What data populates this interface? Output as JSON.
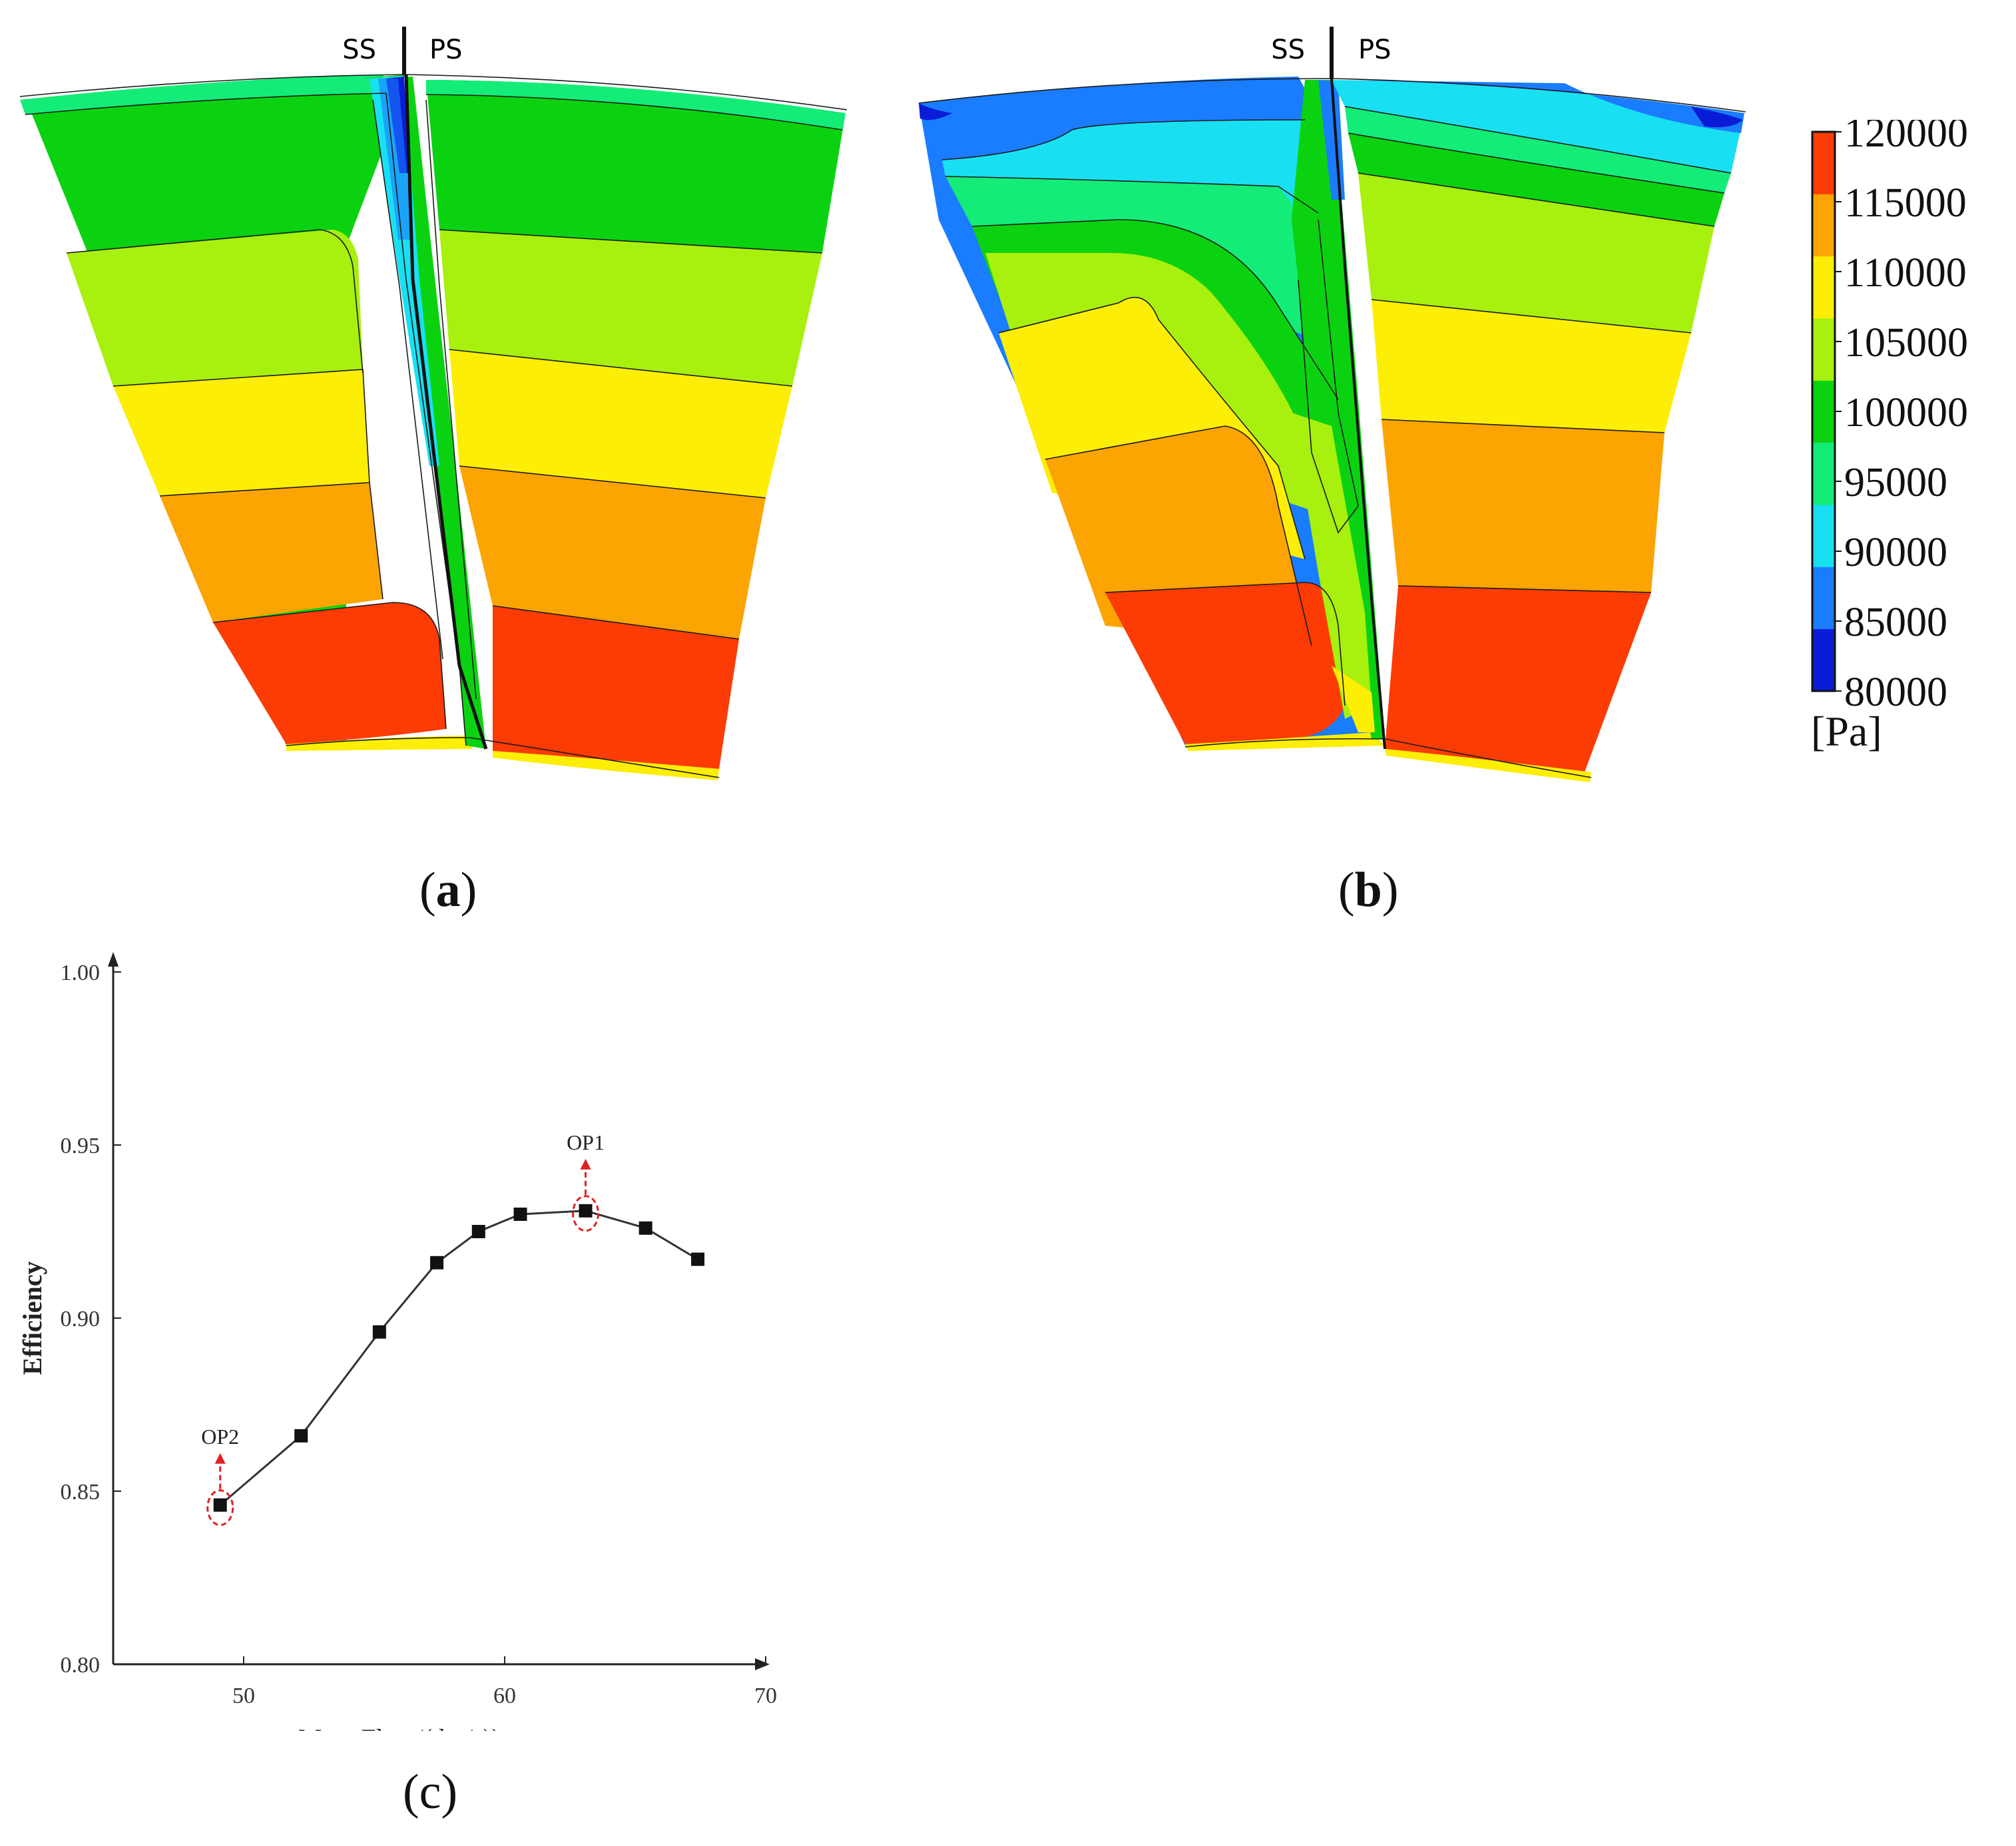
{
  "figure": {
    "panel_a_label": {
      "open": "(",
      "letter": "a",
      "close": ")"
    },
    "panel_b_label": {
      "open": "(",
      "letter": "b",
      "close": ")"
    },
    "panel_c_label": "(c)"
  },
  "contour_a": {
    "ss_label": "SS",
    "ps_label": "PS"
  },
  "contour_b": {
    "ss_label": "SS",
    "ps_label": "PS"
  },
  "colorbar": {
    "unit": "[Pa]",
    "ticks": [
      "120000",
      "115000",
      "110000",
      "105000",
      "100000",
      "95000",
      "90000",
      "85000",
      "80000"
    ],
    "colors": [
      "#0a1cd6",
      "#1a7cff",
      "#18e0f2",
      "#14ec78",
      "#0ad210",
      "#a8f00e",
      "#fcee04",
      "#fca402",
      "#fc3c04"
    ]
  },
  "chart_data": {
    "type": "line",
    "title": "",
    "xlabel": "Mass Flow/( kg/s))",
    "ylabel": "Efficiency",
    "xlim": [
      45,
      70
    ],
    "ylim": [
      0.8,
      1.0
    ],
    "xticks": [
      "50",
      "60",
      "70"
    ],
    "xtick_values": [
      50,
      60,
      70
    ],
    "yticks": [
      "0.80",
      "0.85",
      "0.90",
      "0.95",
      "1.00"
    ],
    "ytick_values": [
      0.8,
      0.85,
      0.9,
      0.95,
      1.0
    ],
    "series": [
      {
        "name": "Efficiency",
        "x": [
          49.1,
          52.2,
          55.2,
          57.4,
          59.0,
          60.6,
          63.1,
          65.4,
          67.4
        ],
        "y": [
          0.846,
          0.866,
          0.896,
          0.916,
          0.925,
          0.93,
          0.931,
          0.926,
          0.917
        ]
      }
    ],
    "annotations": [
      {
        "label": "OP1",
        "x": 63.1,
        "y": 0.931
      },
      {
        "label": "OP2",
        "x": 49.1,
        "y": 0.846
      }
    ]
  }
}
